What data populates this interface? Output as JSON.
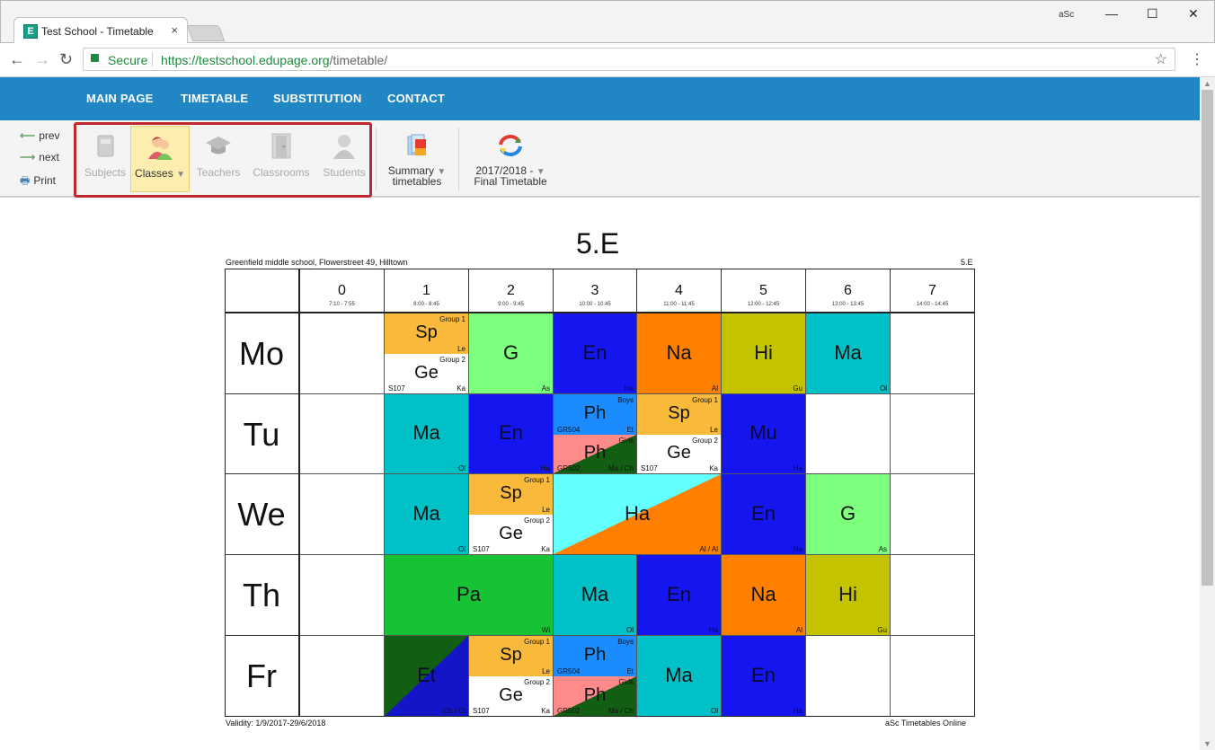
{
  "browser": {
    "tab_title": "Test School - Timetable",
    "tab_close": "×",
    "favicon_letter": "E",
    "profile_label": "aSc",
    "minimize": "—",
    "maximize": "☐",
    "close": "✕",
    "secure_label": "Secure",
    "url_host": "https://testschool.edupage.org",
    "url_path": "/timetable/"
  },
  "nav": {
    "items": [
      "MAIN PAGE",
      "TIMETABLE",
      "SUBSTITUTION",
      "CONTACT"
    ]
  },
  "ribbon": {
    "prev": "prev",
    "next": "next",
    "print": "Print",
    "views": [
      {
        "label": "Subjects",
        "icon": "book-icon",
        "selected": false
      },
      {
        "label": "Classes",
        "icon": "classes-icon",
        "selected": true
      },
      {
        "label": "Teachers",
        "icon": "graduation-cap-icon",
        "selected": false
      },
      {
        "label": "Classrooms",
        "icon": "door-icon",
        "selected": false
      },
      {
        "label": "Students",
        "icon": "student-icon",
        "selected": false
      }
    ],
    "summary_line1": "Summary",
    "summary_line2": "timetables",
    "year_line1": "2017/2018 -",
    "year_line2": "Final Timetable"
  },
  "timetable": {
    "title": "5.E",
    "school": "Greenfield middle school, Flowerstreet 49, Hilltown",
    "class_code": "5.E",
    "validity": "Validity: 1/9/2017-29/6/2018",
    "footer": "aSc Timetables Online",
    "periods": [
      {
        "num": "0",
        "time": "7:10 - 7:55"
      },
      {
        "num": "1",
        "time": "8:00 - 8:45"
      },
      {
        "num": "2",
        "time": "9:00 - 9:45"
      },
      {
        "num": "3",
        "time": "10:00 - 10:45"
      },
      {
        "num": "4",
        "time": "11:00 - 11:45"
      },
      {
        "num": "5",
        "time": "12:00 - 12:45"
      },
      {
        "num": "6",
        "time": "13:00 - 13:45"
      },
      {
        "num": "7",
        "time": "14:00 - 14:45"
      }
    ],
    "days": [
      "Mo",
      "Tu",
      "We",
      "Th",
      "Fr"
    ],
    "lessons": [
      {
        "day": 0,
        "p": 1,
        "span": 1,
        "half": "top",
        "sub": "Sp",
        "tch": "Le",
        "grp": "Group 1",
        "color": "#f9b93a"
      },
      {
        "day": 0,
        "p": 1,
        "span": 1,
        "half": "bottom",
        "sub": "Ge",
        "tch": "Ka",
        "grp": "Group 2",
        "room": "S107",
        "color": "#ffffff"
      },
      {
        "day": 0,
        "p": 2,
        "span": 1,
        "sub": "G",
        "tch": "As",
        "color": "#7cff7c"
      },
      {
        "day": 0,
        "p": 3,
        "span": 1,
        "sub": "En",
        "tch": "Ha",
        "color": "#1515f0"
      },
      {
        "day": 0,
        "p": 4,
        "span": 1,
        "sub": "Na",
        "tch": "Al",
        "color": "#ff7f00"
      },
      {
        "day": 0,
        "p": 5,
        "span": 1,
        "sub": "Hi",
        "tch": "Gu",
        "color": "#c3c300"
      },
      {
        "day": 0,
        "p": 6,
        "span": 1,
        "sub": "Ma",
        "tch": "Ol",
        "color": "#00c0c8"
      },
      {
        "day": 1,
        "p": 1,
        "span": 1,
        "sub": "Ma",
        "tch": "Ol",
        "color": "#00c0c8"
      },
      {
        "day": 1,
        "p": 2,
        "span": 1,
        "sub": "En",
        "tch": "Ha",
        "color": "#1515f0"
      },
      {
        "day": 1,
        "p": 3,
        "span": 1,
        "half": "top",
        "sub": "Ph",
        "tch": "Et",
        "grp": "Boys",
        "room": "GR504",
        "color": "#1a8cff"
      },
      {
        "day": 1,
        "p": 3,
        "span": 1,
        "half": "bottom",
        "sub": "Ph",
        "tch": "Ma / Ch",
        "grp": "Girls",
        "room": "GR502",
        "color": "#ff8a8a",
        "color2": "#125e12"
      },
      {
        "day": 1,
        "p": 4,
        "span": 1,
        "half": "top",
        "sub": "Sp",
        "tch": "Le",
        "grp": "Group 1",
        "color": "#f9b93a"
      },
      {
        "day": 1,
        "p": 4,
        "span": 1,
        "half": "bottom",
        "sub": "Ge",
        "tch": "Ka",
        "grp": "Group 2",
        "room": "S107",
        "color": "#ffffff"
      },
      {
        "day": 1,
        "p": 5,
        "span": 1,
        "sub": "Mu",
        "tch": "Ha",
        "color": "#1515f0"
      },
      {
        "day": 2,
        "p": 1,
        "span": 1,
        "sub": "Ma",
        "tch": "Ol",
        "color": "#00c0c8"
      },
      {
        "day": 2,
        "p": 2,
        "span": 1,
        "half": "top",
        "sub": "Sp",
        "tch": "Le",
        "grp": "Group 1",
        "color": "#f9b93a"
      },
      {
        "day": 2,
        "p": 2,
        "span": 1,
        "half": "bottom",
        "sub": "Ge",
        "tch": "Ka",
        "grp": "Group 2",
        "room": "S107",
        "color": "#ffffff"
      },
      {
        "day": 2,
        "p": 3,
        "span": 2,
        "sub": "Ha",
        "tch": "Al / Al",
        "color": "#64ffff",
        "color2": "#ff7f00"
      },
      {
        "day": 2,
        "p": 5,
        "span": 1,
        "sub": "En",
        "tch": "Ha",
        "color": "#1515f0"
      },
      {
        "day": 2,
        "p": 6,
        "span": 1,
        "sub": "G",
        "tch": "As",
        "color": "#7cff7c"
      },
      {
        "day": 3,
        "p": 1,
        "span": 2,
        "sub": "Pa",
        "tch": "Wi",
        "color": "#17c234"
      },
      {
        "day": 3,
        "p": 3,
        "span": 1,
        "sub": "Ma",
        "tch": "Ol",
        "color": "#00c0c8"
      },
      {
        "day": 3,
        "p": 4,
        "span": 1,
        "sub": "En",
        "tch": "Ha",
        "color": "#1515f0"
      },
      {
        "day": 3,
        "p": 5,
        "span": 1,
        "sub": "Na",
        "tch": "Al",
        "color": "#ff7f00"
      },
      {
        "day": 3,
        "p": 6,
        "span": 1,
        "sub": "Hi",
        "tch": "Gu",
        "color": "#c3c300"
      },
      {
        "day": 4,
        "p": 1,
        "span": 1,
        "sub": "Et",
        "tch": "Ch / Ol",
        "color": "#125e12",
        "color2": "#1515c8"
      },
      {
        "day": 4,
        "p": 2,
        "span": 1,
        "half": "top",
        "sub": "Sp",
        "tch": "Le",
        "grp": "Group 1",
        "color": "#f9b93a"
      },
      {
        "day": 4,
        "p": 2,
        "span": 1,
        "half": "bottom",
        "sub": "Ge",
        "tch": "Ka",
        "grp": "Group 2",
        "room": "S107",
        "color": "#ffffff"
      },
      {
        "day": 4,
        "p": 3,
        "span": 1,
        "half": "top",
        "sub": "Ph",
        "tch": "Et",
        "grp": "Boys",
        "room": "GR504",
        "color": "#1a8cff"
      },
      {
        "day": 4,
        "p": 3,
        "span": 1,
        "half": "bottom",
        "sub": "Ph",
        "tch": "Ma / Ch",
        "grp": "Girls",
        "room": "GR502",
        "color": "#ff8a8a",
        "color2": "#125e12"
      },
      {
        "day": 4,
        "p": 4,
        "span": 1,
        "sub": "Ma",
        "tch": "Ol",
        "color": "#00c0c8"
      },
      {
        "day": 4,
        "p": 5,
        "span": 1,
        "sub": "En",
        "tch": "Ha",
        "color": "#1515f0"
      }
    ]
  }
}
